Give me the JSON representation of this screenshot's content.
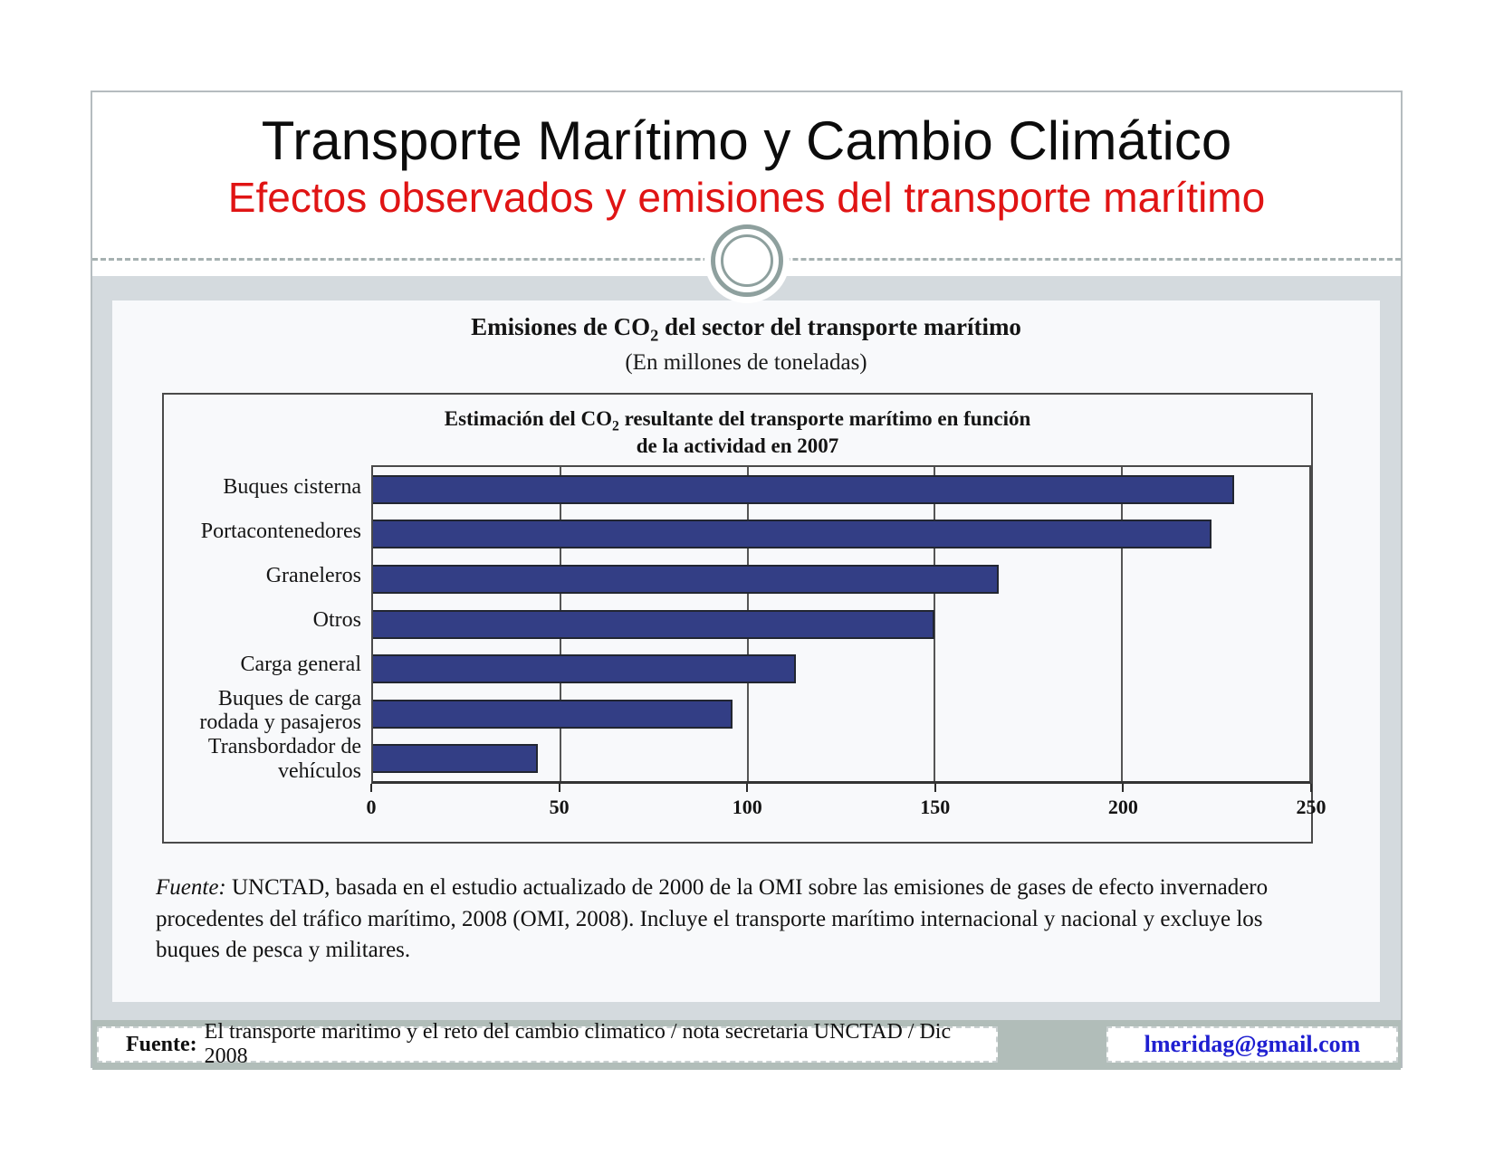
{
  "slide": {
    "title": "Transporte Marítimo y Cambio Climático",
    "subtitle": "Efectos observados y emisiones del transporte marítimo",
    "accent_red": "#e01414"
  },
  "chart": {
    "suptitle": {
      "pre": "Emisiones de CO",
      "sub": "2",
      "post": " del sector del transporte marítimo"
    },
    "units_label": "(En millones de toneladas)",
    "inner_title": {
      "pre": "Estimación del CO",
      "sub": "2",
      "post": " resultante del transporte marítimo en función",
      "line2": "de la actividad en 2007"
    }
  },
  "chart_data": {
    "type": "bar",
    "orientation": "horizontal",
    "supertitle": "Emisiones de CO2 del sector del transporte marítimo",
    "units": "En millones de toneladas",
    "title": "Estimación del CO2 resultante del transporte marítimo en función de la actividad en 2007",
    "categories": [
      "Buques cisterna",
      "Portacontenedores",
      "Graneleros",
      "Otros",
      "Carga general",
      "Buques de carga rodada y pasajeros",
      "Transbordador de vehículos"
    ],
    "values": [
      230,
      224,
      167,
      150,
      113,
      96,
      44
    ],
    "xlabel": "",
    "ylabel": "",
    "xlim": [
      0,
      250
    ],
    "xticks": [
      0,
      50,
      100,
      150,
      200,
      250
    ],
    "grid": true,
    "legend": false,
    "bar_color": "#333e85"
  },
  "source_note": {
    "label": "Fuente:",
    "text": "UNCTAD, basada en el estudio actualizado de 2000 de la OMI sobre las emisiones de gases de efecto invernadero procedentes del tráfico marítimo, 2008 (OMI, 2008).  Incluye el transporte marítimo internacional y nacional y excluye los buques de pesca y militares."
  },
  "footer": {
    "source_label": "Fuente:",
    "source_text": "El transporte maritimo y el reto del cambio climatico / nota secretaria UNCTAD / Dic 2008",
    "email": "lmeridag@gmail.com",
    "email_color": "#1f1fd1"
  }
}
